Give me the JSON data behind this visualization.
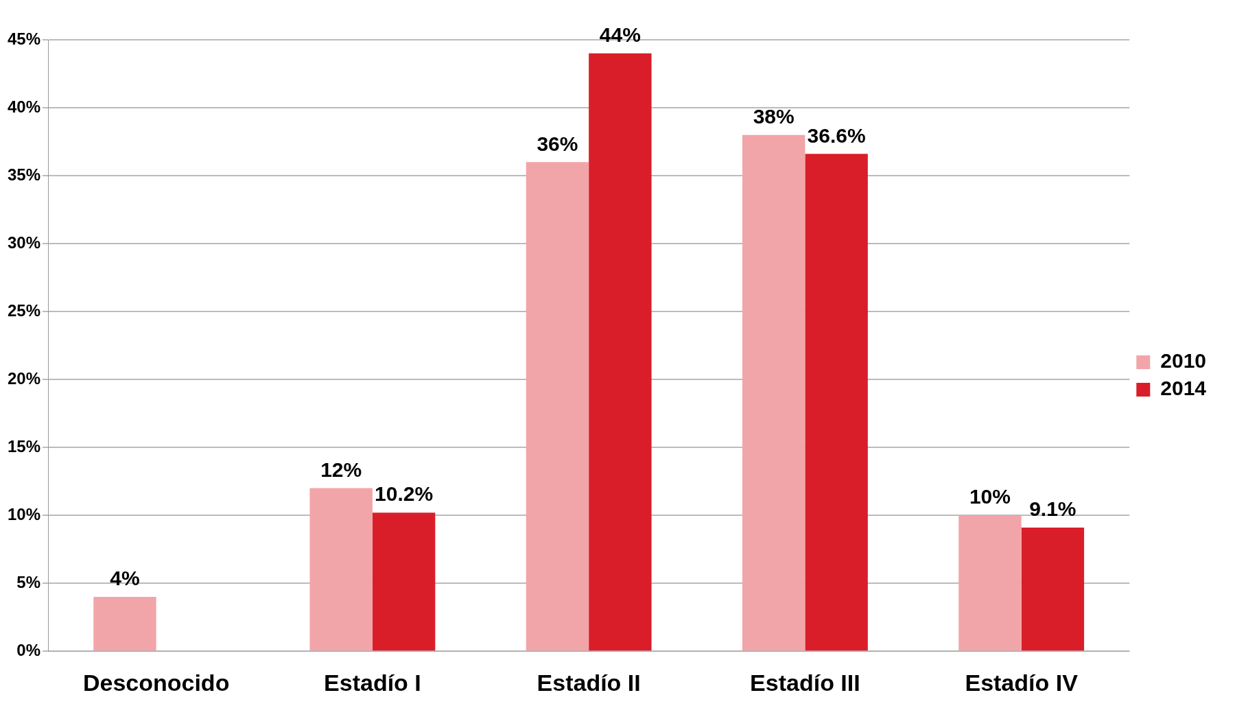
{
  "chart_data": {
    "type": "bar",
    "categories": [
      "Desconocido",
      "Estadío I",
      "Estadío II",
      "Estadío III",
      "Estadío IV"
    ],
    "series": [
      {
        "name": "2010",
        "color": "#f2a5a8",
        "values": [
          4,
          12,
          36,
          38,
          10
        ],
        "value_labels": [
          "4%",
          "12%",
          "36%",
          "38%",
          "10%"
        ]
      },
      {
        "name": "2014",
        "color": "#d91e2a",
        "values": [
          null,
          10.2,
          44,
          36.6,
          9.1
        ],
        "value_labels": [
          null,
          "10.2%",
          "44%",
          "36.6%",
          "9.1%"
        ]
      }
    ],
    "ylim": [
      0,
      45
    ],
    "yticks": [
      {
        "value": 0,
        "label": "0%"
      },
      {
        "value": 5,
        "label": "5%"
      },
      {
        "value": 10,
        "label": "10%"
      },
      {
        "value": 15,
        "label": "15%"
      },
      {
        "value": 20,
        "label": "20%"
      },
      {
        "value": 25,
        "label": "25%"
      },
      {
        "value": 30,
        "label": "30%"
      },
      {
        "value": 35,
        "label": "35%"
      },
      {
        "value": 40,
        "label": "40%"
      },
      {
        "value": 45,
        "label": "45%"
      }
    ],
    "grid": "y",
    "legend": "right"
  }
}
